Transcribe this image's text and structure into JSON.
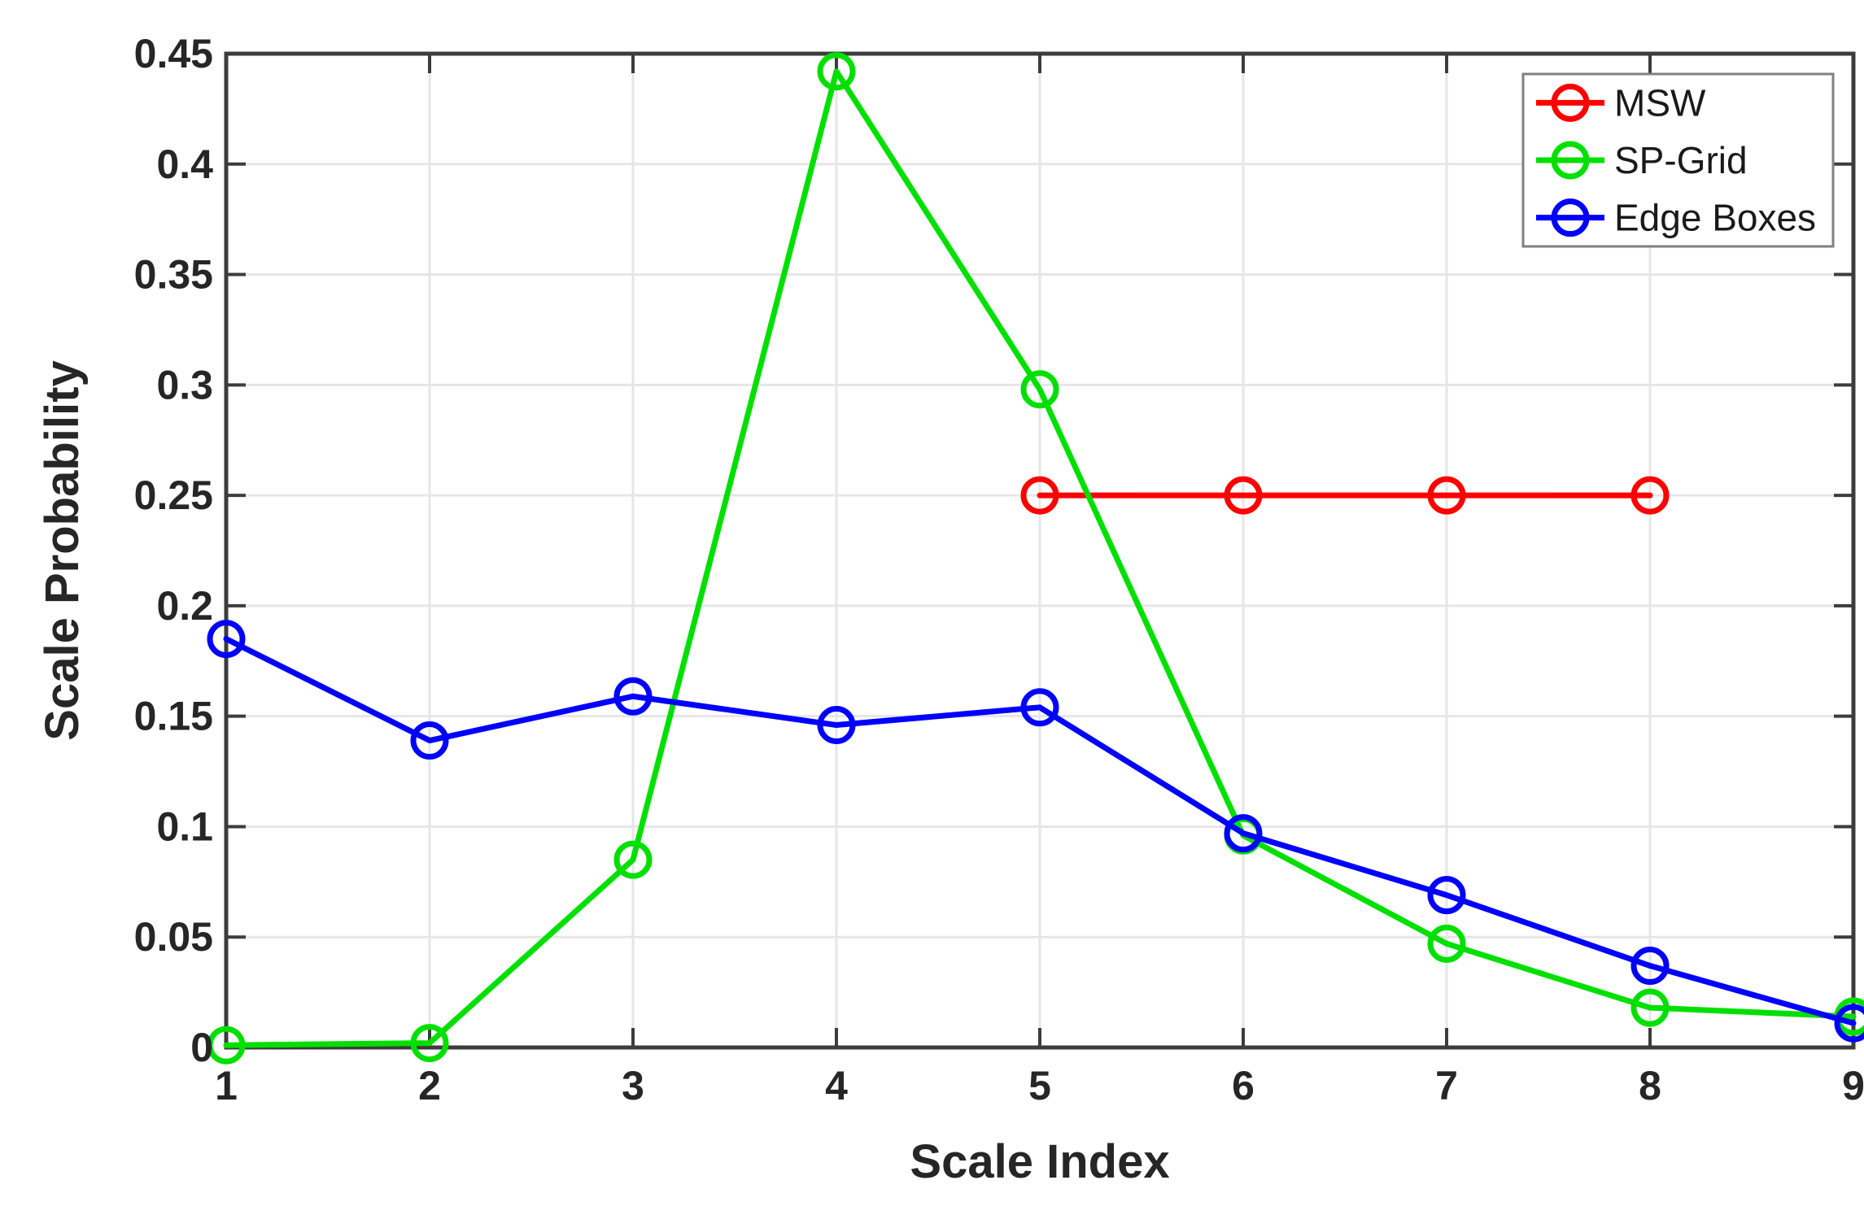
{
  "chart_data": {
    "type": "line",
    "title": "",
    "xlabel": "Scale Index",
    "ylabel": "Scale Probability",
    "xlim": [
      1,
      9
    ],
    "ylim": [
      0,
      0.45
    ],
    "xticks": [
      1,
      2,
      3,
      4,
      5,
      6,
      7,
      8,
      9
    ],
    "xtick_labels": [
      "1",
      "2",
      "3",
      "4",
      "5",
      "6",
      "7",
      "8",
      "9"
    ],
    "yticks": [
      0,
      0.05,
      0.1,
      0.15,
      0.2,
      0.25,
      0.3,
      0.35,
      0.4,
      0.45
    ],
    "ytick_labels": [
      "0",
      "0.05",
      "0.1",
      "0.15",
      "0.2",
      "0.25",
      "0.3",
      "0.35",
      "0.4",
      "0.45"
    ],
    "grid": true,
    "box": true,
    "legend_position": "top-right-inside",
    "marker": "open-circle",
    "background_color": "#ffffff",
    "grid_color": "#e6e6e6",
    "axis_color": "#3c3c3c",
    "text_color": "#262626",
    "legend_border_color": "#808080",
    "series": [
      {
        "name": "MSW",
        "color": "#ff0000",
        "x": [
          5,
          6,
          7,
          8
        ],
        "y": [
          0.25,
          0.25,
          0.25,
          0.25
        ]
      },
      {
        "name": "SP-Grid",
        "color": "#00e000",
        "x": [
          1,
          2,
          3,
          4,
          5,
          6,
          7,
          8,
          9
        ],
        "y": [
          0.001,
          0.002,
          0.085,
          0.442,
          0.298,
          0.096,
          0.047,
          0.018,
          0.014
        ]
      },
      {
        "name": "Edge Boxes",
        "color": "#0000ff",
        "x": [
          1,
          2,
          3,
          4,
          5,
          6,
          7,
          8,
          9
        ],
        "y": [
          0.185,
          0.139,
          0.159,
          0.146,
          0.154,
          0.097,
          0.069,
          0.037,
          0.011
        ]
      }
    ]
  }
}
